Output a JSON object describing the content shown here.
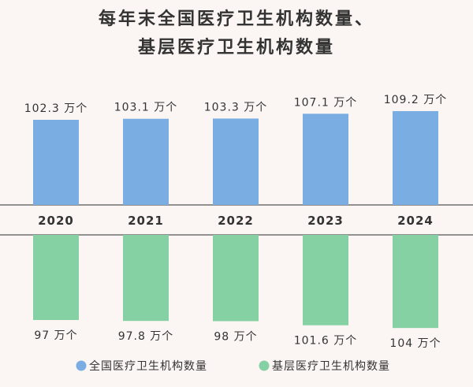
{
  "chart_data": {
    "type": "bar",
    "title_lines": [
      "每年末全国医疗卫生机构数量、",
      "基层医疗卫生机构数量"
    ],
    "categories": [
      "2020",
      "2021",
      "2022",
      "2023",
      "2024"
    ],
    "series": [
      {
        "name": "全国医疗卫生机构数量",
        "values": [
          102.3,
          103.1,
          103.3,
          107.1,
          109.2
        ],
        "labels": [
          "102.3 万个",
          "103.1 万个",
          "103.3 万个",
          "107.1 万个",
          "109.2 万个"
        ],
        "color": "#7aaee3"
      },
      {
        "name": "基层医疗卫生机构数量",
        "values": [
          97,
          97.8,
          98,
          101.6,
          104
        ],
        "labels": [
          "97 万个",
          "97.8 万个",
          "98 万个",
          "101.6 万个",
          "104 万个"
        ],
        "color": "#86d1a4"
      }
    ],
    "value_unit": "万个",
    "legend_position": "bottom",
    "axis_line_color": "#555555"
  }
}
